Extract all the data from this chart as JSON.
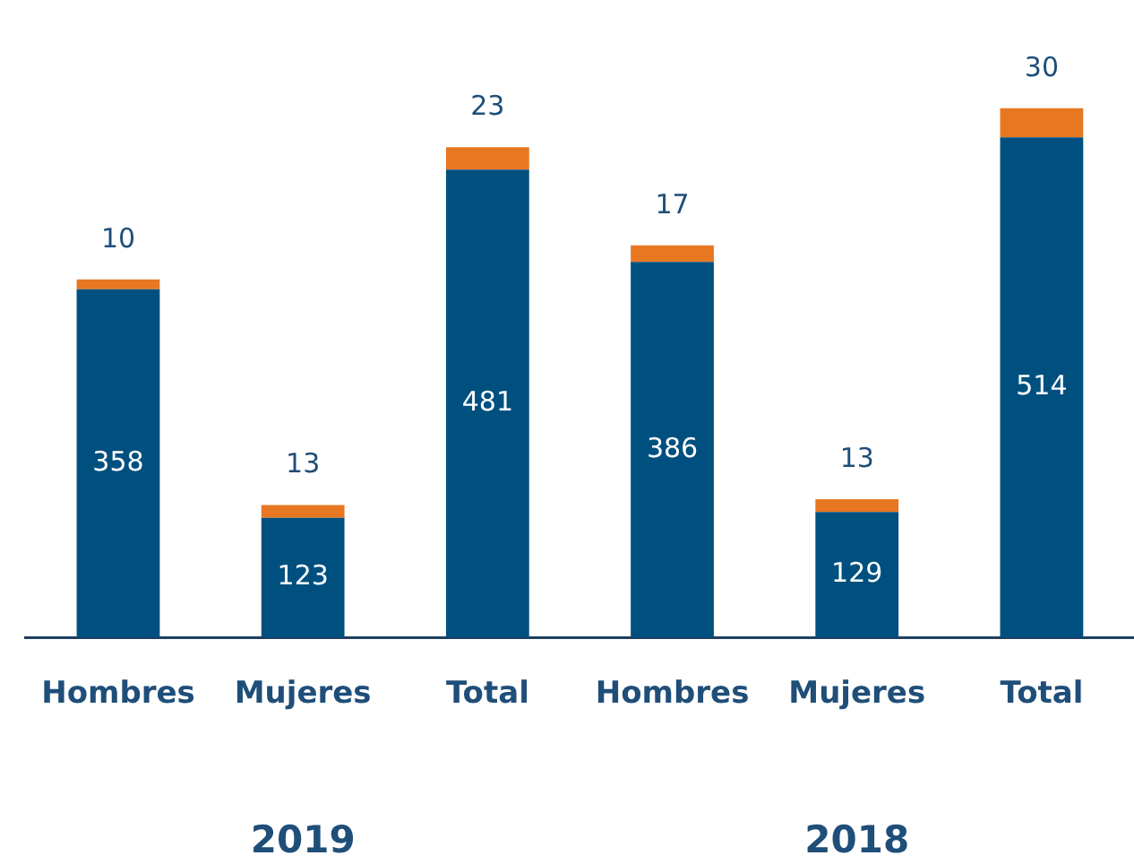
{
  "chart_data": {
    "type": "bar",
    "stacked": true,
    "categories": [
      "Hombres",
      "Mujeres",
      "Total",
      "Hombres",
      "Mujeres",
      "Total"
    ],
    "series": [
      {
        "color": "#00507f",
        "values": [
          358,
          123,
          481,
          386,
          129,
          514
        ]
      },
      {
        "color": "#e87722",
        "values": [
          10,
          13,
          23,
          17,
          13,
          30
        ]
      }
    ],
    "data_labels": true,
    "legend": false,
    "grid": false,
    "tick_labels": "x",
    "annotations": [
      "2019",
      "2018"
    ]
  }
}
